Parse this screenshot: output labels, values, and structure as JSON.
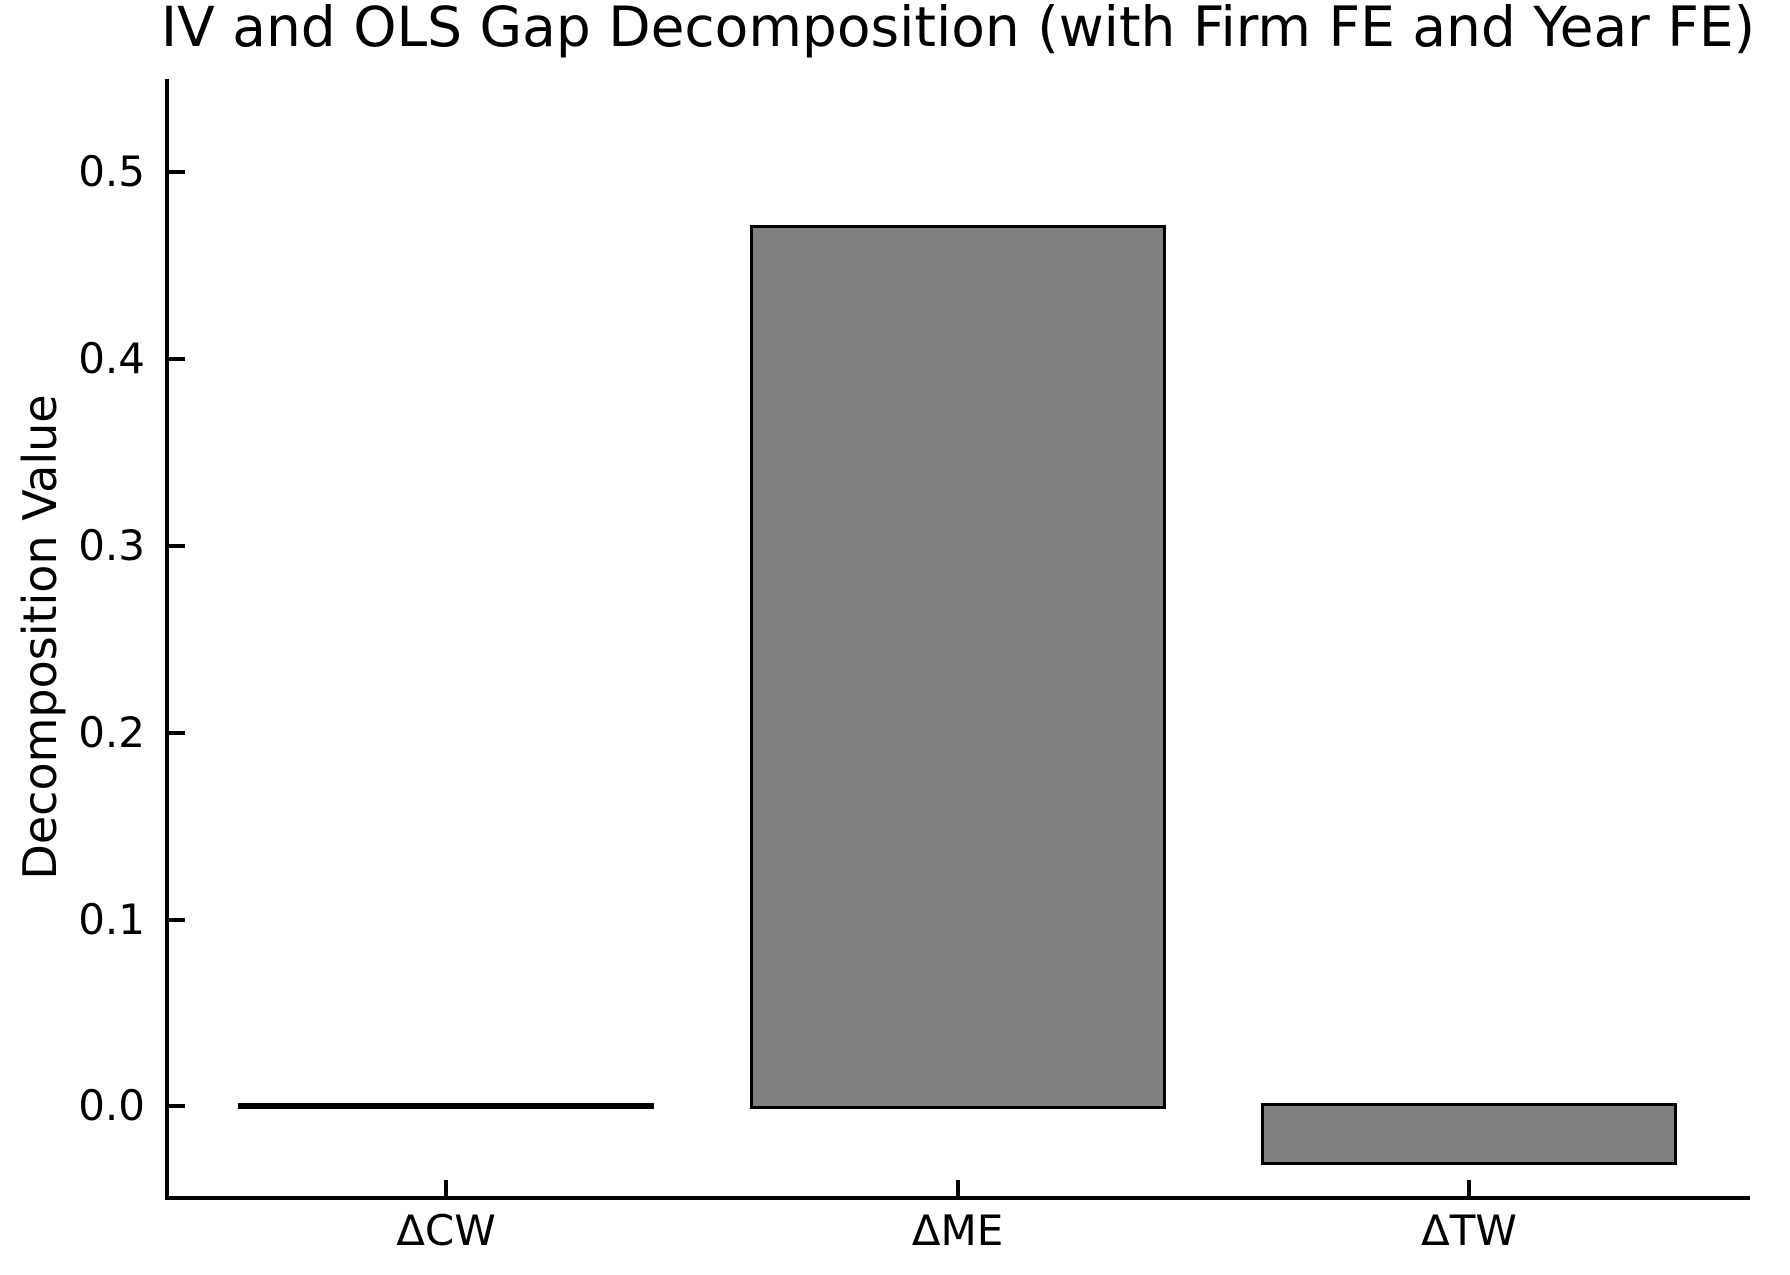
{
  "chart_data": {
    "type": "bar",
    "title": "IV and OLS Gap Decomposition (with Firm FE and Year FE)",
    "ylabel": "Decomposition Value",
    "categories": [
      "ΔCW",
      "ΔME",
      "ΔTW"
    ],
    "values": [
      0.0,
      0.47,
      -0.03
    ],
    "yticks": [
      0.0,
      0.1,
      0.2,
      0.3,
      0.4,
      0.5
    ],
    "ytick_labels": [
      "0.0",
      "0.1",
      "0.2",
      "0.3",
      "0.4",
      "0.5"
    ],
    "ylim": [
      -0.049,
      0.55
    ],
    "bar_width_fraction": 0.8,
    "bar_color": "#808080",
    "edge_color": "#000000",
    "axis_color": "#000000",
    "background": "#ffffff",
    "grid": false,
    "legend": "none",
    "spines": [
      "left",
      "bottom"
    ],
    "tick_direction": "in"
  }
}
